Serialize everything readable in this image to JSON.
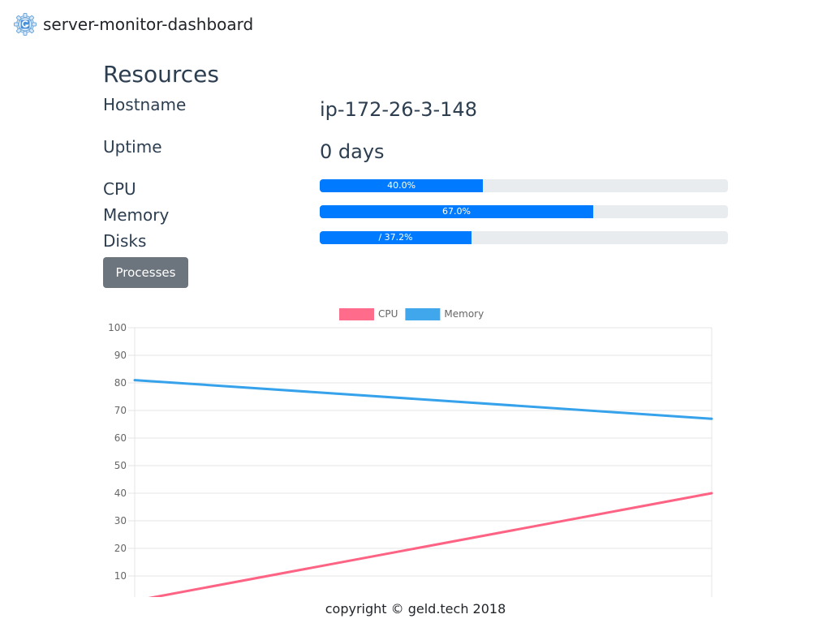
{
  "app": {
    "brand": "server-monitor-dashboard",
    "logo_icon": "gear-g-logo-icon"
  },
  "resources": {
    "title": "Resources",
    "hostname_label": "Hostname",
    "hostname_value": "ip-172-26-3-148",
    "uptime_label": "Uptime",
    "uptime_value": "0 days",
    "cpu_label": "CPU",
    "cpu_percent": 40.0,
    "cpu_text": "40.0%",
    "memory_label": "Memory",
    "memory_percent": 67.0,
    "memory_text": "67.0%",
    "disks_label": "Disks",
    "disks_percent": 37.2,
    "disks_text": "/ 37.2%",
    "processes_button": "Processes",
    "progress_color": "#007bff"
  },
  "chart_data": {
    "type": "line",
    "x": [
      0,
      1
    ],
    "series": [
      {
        "name": "CPU",
        "values": [
          1,
          40
        ],
        "color": "#ff6384"
      },
      {
        "name": "Memory",
        "values": [
          81,
          67
        ],
        "color": "#36a2eb"
      }
    ],
    "yticks": [
      10,
      20,
      30,
      40,
      50,
      60,
      70,
      80,
      90,
      100
    ],
    "ylim": [
      0,
      100
    ],
    "legend": "top",
    "grid": true
  },
  "footer": {
    "text": "copyright © geld.tech 2018"
  }
}
